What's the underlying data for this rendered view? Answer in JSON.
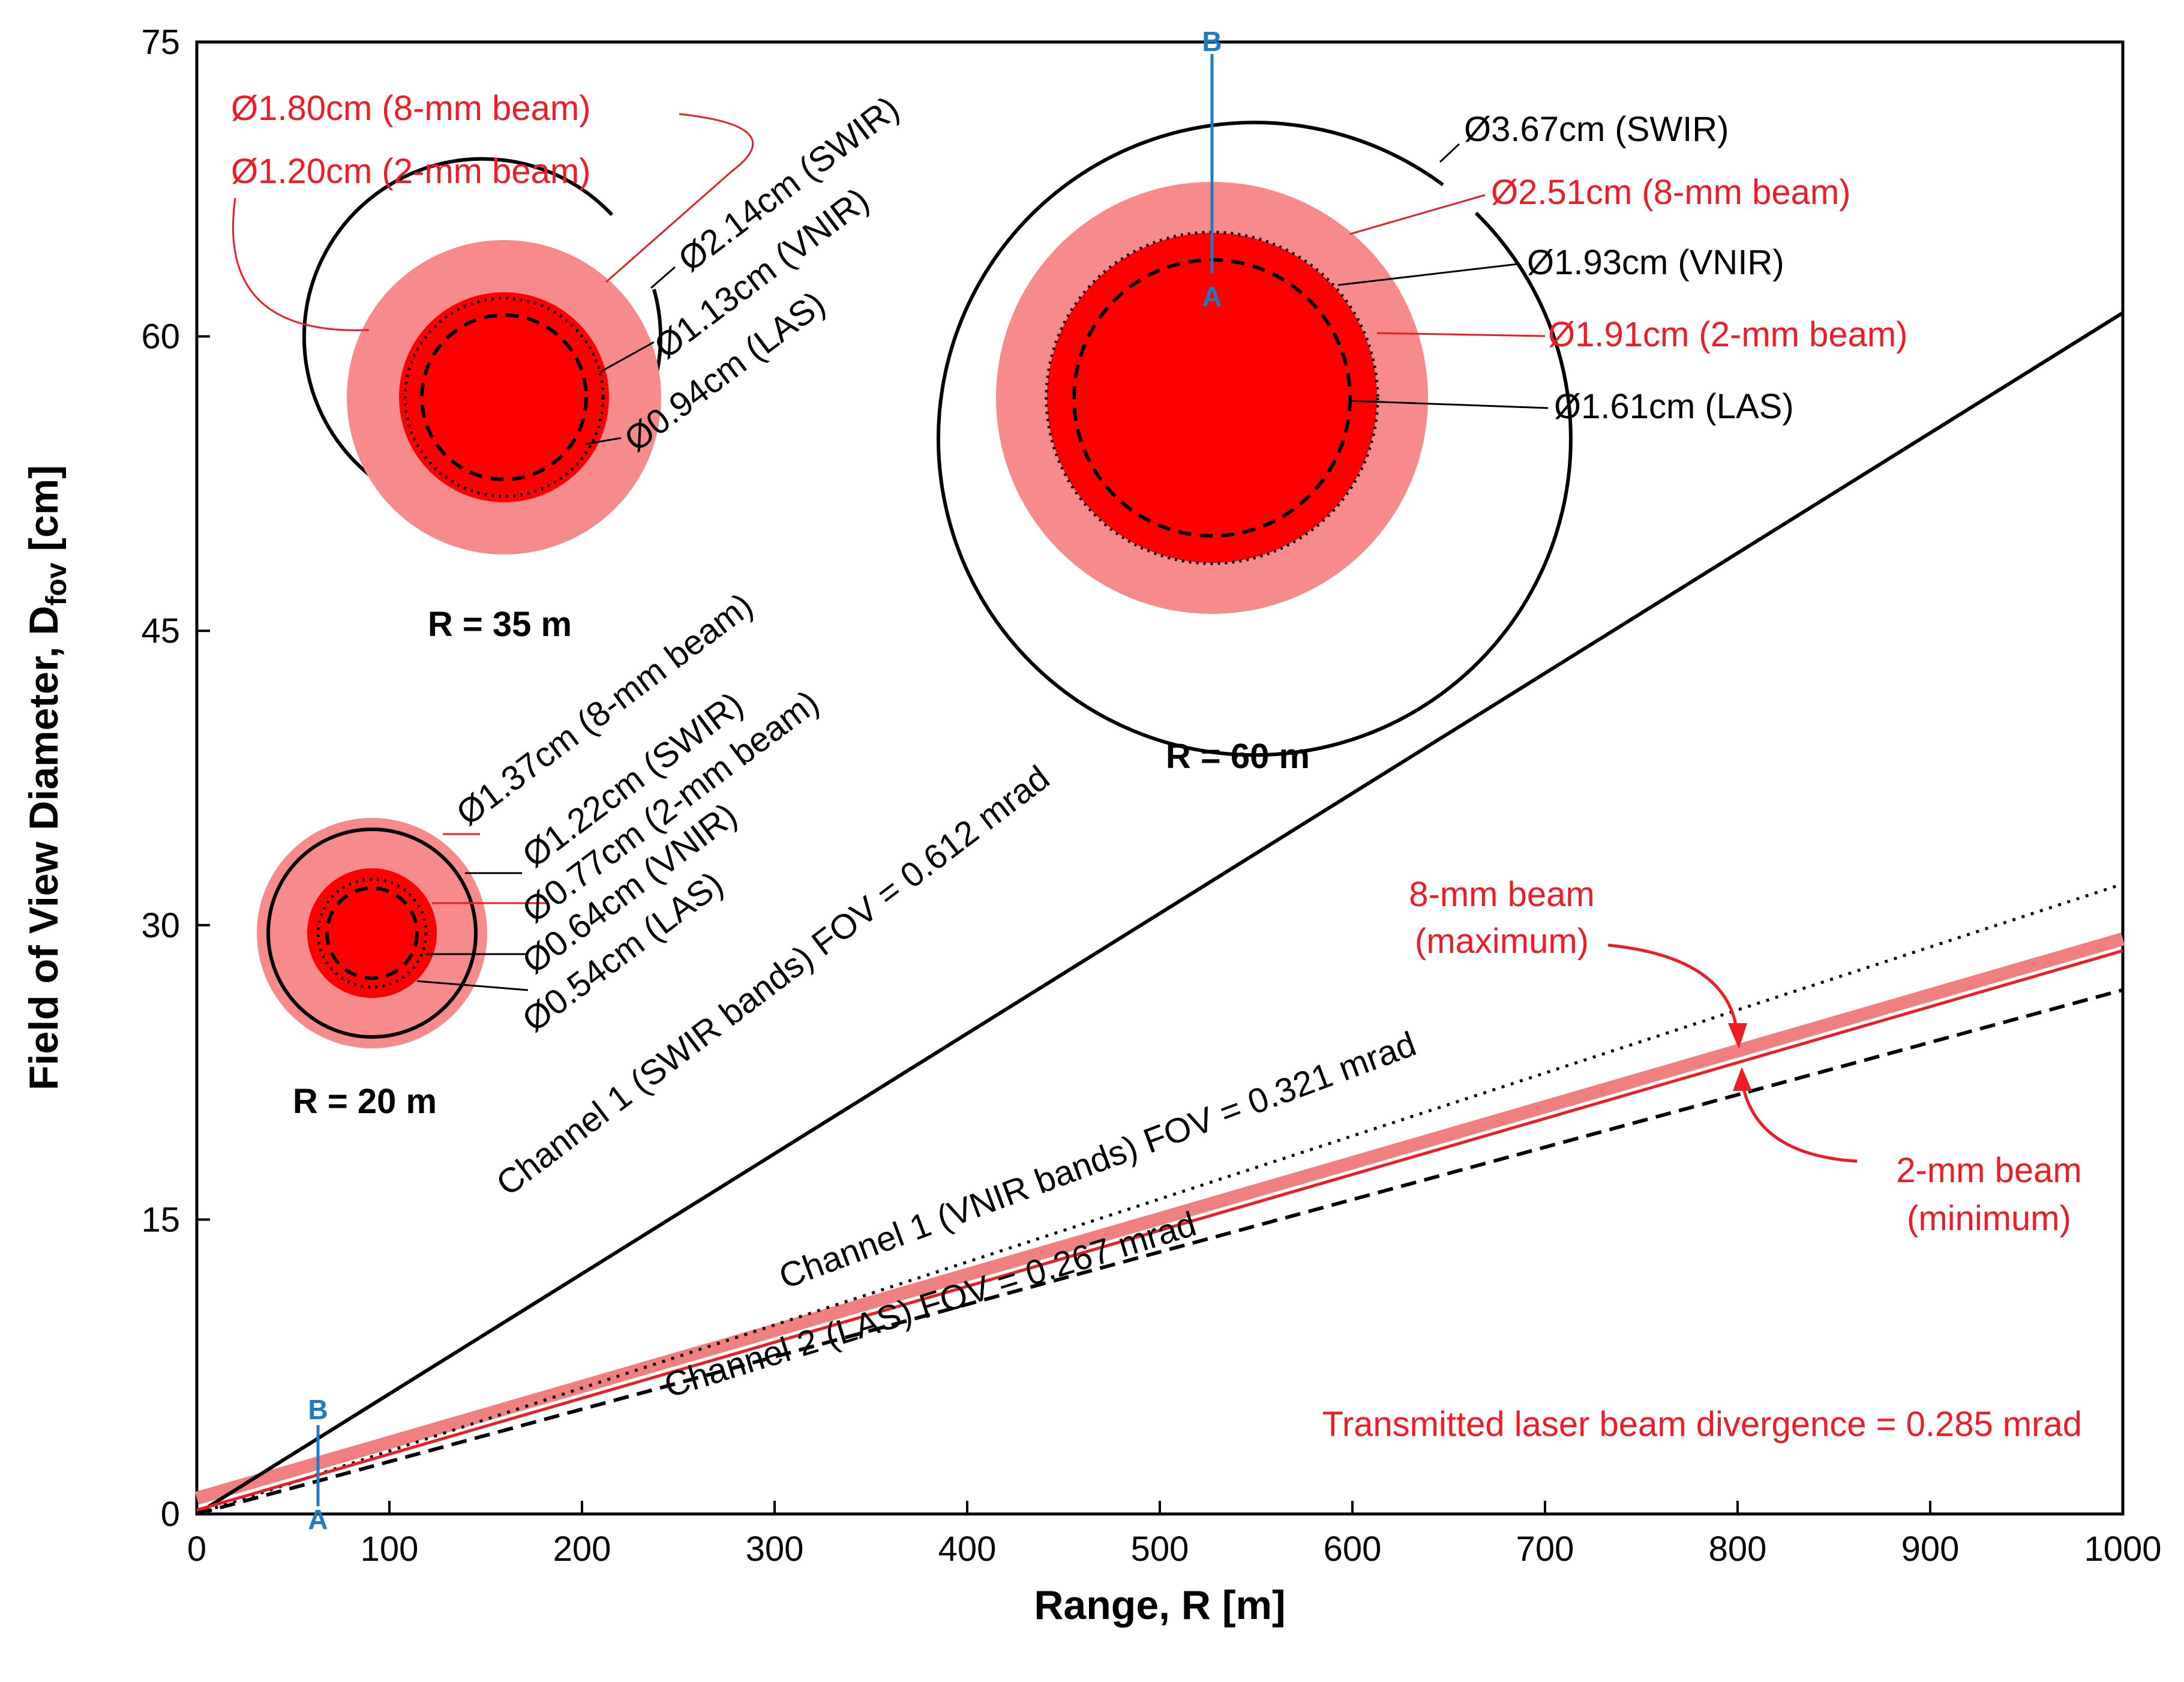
{
  "chart_data": {
    "type": "line",
    "xlabel": "Range, R [m]",
    "ylabel_main": "Field of View Diameter, D",
    "ylabel_sub": "fov",
    "ylabel_unit": " [cm]",
    "xlim": [
      0,
      1000
    ],
    "ylim": [
      0,
      75
    ],
    "x_ticks": [
      "0",
      "100",
      "200",
      "300",
      "400",
      "500",
      "600",
      "700",
      "800",
      "900",
      "1000"
    ],
    "y_ticks": [
      "0",
      "15",
      "30",
      "45",
      "60",
      "75"
    ],
    "grid": false,
    "series": [
      {
        "key": "swir",
        "style": "solid",
        "color": "#000000",
        "x": [
          0,
          1000
        ],
        "y": [
          0,
          61.2
        ]
      },
      {
        "key": "vnir",
        "style": "dotted",
        "color": "#000000",
        "x": [
          0,
          1000
        ],
        "y": [
          0,
          32.1
        ]
      },
      {
        "key": "las",
        "style": "dashed",
        "color": "#000000",
        "x": [
          0,
          1000
        ],
        "y": [
          0,
          26.7
        ]
      },
      {
        "key": "beam8",
        "style": "thick",
        "color": "#f08080",
        "x": [
          0,
          1000
        ],
        "y": [
          0.8,
          29.3
        ]
      },
      {
        "key": "beam2",
        "style": "solid",
        "color": "#ee1c25",
        "x": [
          0,
          1000
        ],
        "y": [
          0.2,
          28.7
        ]
      }
    ],
    "line_labels": {
      "swir": "Channel 1 (SWIR bands) FOV = 0.612 mrad",
      "vnir": "Channel 1 (VNIR bands) FOV = 0.321 mrad",
      "las": "Channel 2 (LAS) FOV = 0.267 mrad"
    },
    "beam8_label": [
      "8-mm beam",
      "(maximum)"
    ],
    "beam2_label": [
      "2-mm beam",
      "(minimum)"
    ],
    "divergence_note": "Transmitted laser beam divergence = 0.285 mrad",
    "section_marks": {
      "top": "B",
      "bottom": "A"
    },
    "spot_sets": [
      {
        "range_label": "R = 20 m",
        "labels": [
          {
            "text": "Ø1.37cm (8-mm beam)",
            "color": "#ee1c25"
          },
          {
            "text": "Ø1.22cm (SWIR)",
            "color": "#000000"
          },
          {
            "text": "Ø0.77cm (2-mm beam)",
            "color": "#ee1c25"
          },
          {
            "text": "Ø0.64cm (VNIR)",
            "color": "#000000"
          },
          {
            "text": "Ø0.54cm (LAS)",
            "color": "#000000"
          }
        ]
      },
      {
        "range_label": "R = 35 m",
        "labels": [
          {
            "text": "Ø1.80cm (8-mm beam)",
            "color": "#ee1c25"
          },
          {
            "text": "Ø1.20cm (2-mm beam)",
            "color": "#ee1c25"
          },
          {
            "text": "Ø2.14cm (SWIR)",
            "color": "#000000"
          },
          {
            "text": "Ø1.13cm (VNIR)",
            "color": "#000000"
          },
          {
            "text": "Ø0.94cm (LAS)",
            "color": "#000000"
          }
        ]
      },
      {
        "range_label": "R = 60 m",
        "labels": [
          {
            "text": "Ø3.67cm (SWIR)",
            "color": "#000000"
          },
          {
            "text": "Ø2.51cm (8-mm beam)",
            "color": "#ee1c25"
          },
          {
            "text": "Ø1.93cm (VNIR)",
            "color": "#000000"
          },
          {
            "text": "Ø1.91cm (2-mm beam)",
            "color": "#ee1c25"
          },
          {
            "text": "Ø1.61cm (LAS)",
            "color": "#000000"
          }
        ]
      }
    ]
  }
}
